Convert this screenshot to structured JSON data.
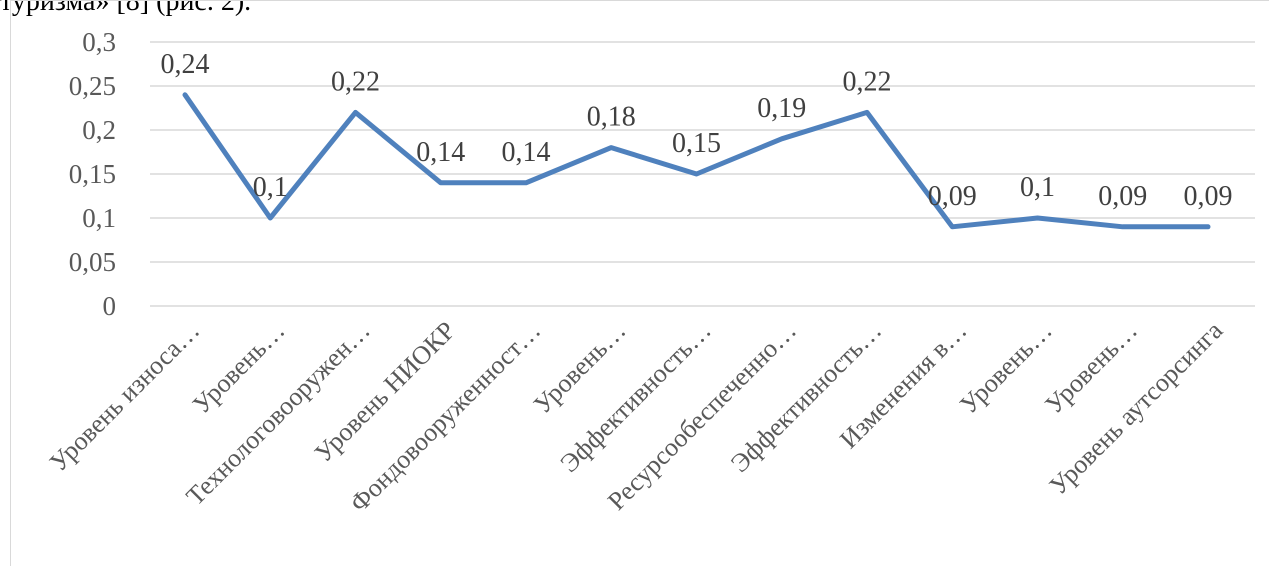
{
  "caption": "туризма» [8] (рис. 2).",
  "chart_data": {
    "type": "line",
    "categories": [
      "Уровень износа…",
      "Уровень…",
      "Технологовооружен…",
      "Уровень НИОКР",
      "Фондовооруженност…",
      "Уровень…",
      "Эффективность…",
      "Ресурсообеспеченно…",
      "Эффективность…",
      "Изменения в…",
      "Уровень…",
      "Уровень…",
      "Уровень аутсорсинга"
    ],
    "values": [
      0.24,
      0.1,
      0.22,
      0.14,
      0.14,
      0.18,
      0.15,
      0.19,
      0.22,
      0.09,
      0.1,
      0.09,
      0.09
    ],
    "data_labels": [
      "0,24",
      "0,1",
      "0,22",
      "0,14",
      "0,14",
      "0,18",
      "0,15",
      "0,19",
      "0,22",
      "0,09",
      "0,1",
      "0,09",
      "0,09"
    ],
    "yticks": [
      {
        "value": 0,
        "label": "0"
      },
      {
        "value": 0.05,
        "label": "0,05"
      },
      {
        "value": 0.1,
        "label": "0,1"
      },
      {
        "value": 0.15,
        "label": "0,15"
      },
      {
        "value": 0.2,
        "label": "0,2"
      },
      {
        "value": 0.25,
        "label": "0,25"
      },
      {
        "value": 0.3,
        "label": "0,3"
      }
    ],
    "ylim": [
      0,
      0.3
    ],
    "grid": true,
    "legend": "none",
    "line_color": "#4f81bd",
    "grid_color": "#d9d9d9"
  }
}
